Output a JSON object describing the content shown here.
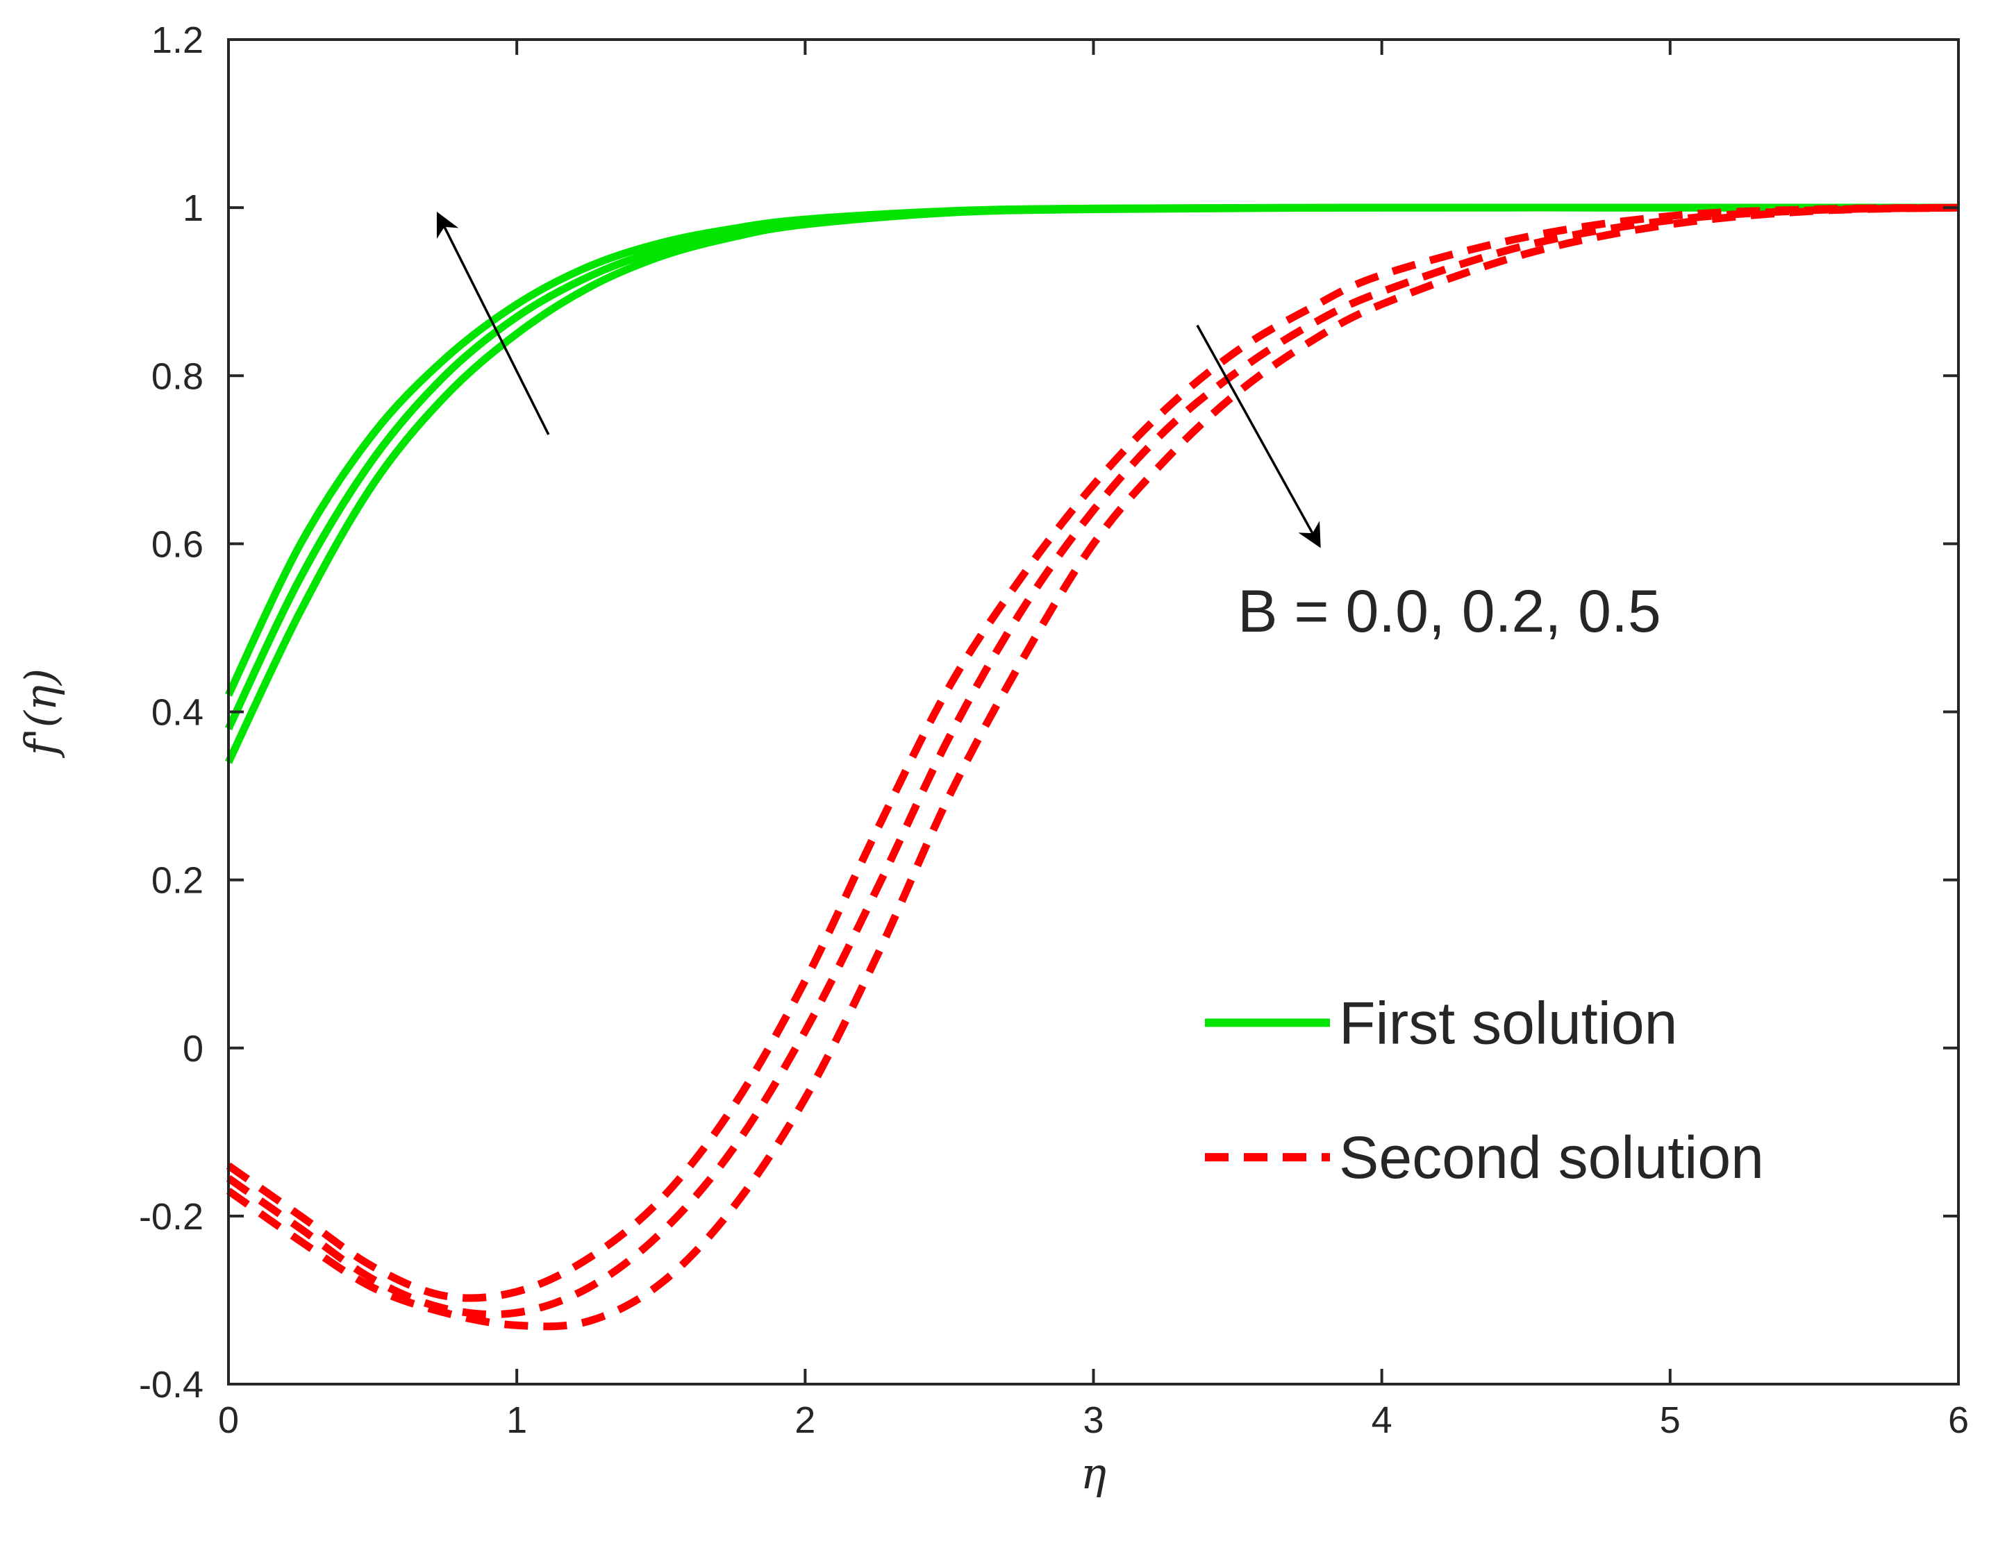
{
  "chart_data": {
    "type": "line",
    "xlabel": "η",
    "ylabel": "f'(η)",
    "xlim": [
      0,
      6
    ],
    "ylim": [
      -0.4,
      1.2
    ],
    "xticks": [
      "0",
      "1",
      "2",
      "3",
      "4",
      "5",
      "6"
    ],
    "yticks": [
      "-0.4",
      "-0.2",
      "0",
      "0.2",
      "0.4",
      "0.6",
      "0.8",
      "1",
      "1.2"
    ],
    "grid": false,
    "legend_position": "bottom-right",
    "annotation": "B = 0.0, 0.2, 0.5",
    "colors": {
      "first": "#00e400",
      "second": "#ff0000",
      "axis": "#262626",
      "arrow": "#000000"
    },
    "legend": [
      {
        "label": "First solution",
        "style": "solid",
        "color": "#00e400"
      },
      {
        "label": "Second solution",
        "style": "dashed",
        "color": "#ff0000"
      }
    ],
    "series": [
      {
        "group": "first",
        "style": "solid",
        "color": "#00e400",
        "x": [
          0,
          0.25,
          0.5,
          0.75,
          1.0,
          1.25,
          1.5,
          1.75,
          2.0,
          2.5,
          3.0,
          4.0,
          5.0,
          6.0
        ],
        "y": [
          0.42,
          0.6,
          0.73,
          0.82,
          0.885,
          0.93,
          0.958,
          0.975,
          0.986,
          0.996,
          0.999,
          1.0,
          1.0,
          1.0
        ]
      },
      {
        "group": "first",
        "style": "solid",
        "color": "#00e400",
        "x": [
          0,
          0.25,
          0.5,
          0.75,
          1.0,
          1.25,
          1.5,
          1.75,
          2.0,
          2.5,
          3.0,
          4.0,
          5.0,
          6.0
        ],
        "y": [
          0.38,
          0.56,
          0.7,
          0.8,
          0.87,
          0.918,
          0.95,
          0.97,
          0.983,
          0.995,
          0.999,
          1.0,
          1.0,
          1.0
        ]
      },
      {
        "group": "first",
        "style": "solid",
        "color": "#00e400",
        "x": [
          0,
          0.25,
          0.5,
          0.75,
          1.0,
          1.25,
          1.5,
          1.75,
          2.0,
          2.5,
          3.0,
          4.0,
          5.0,
          6.0
        ],
        "y": [
          0.34,
          0.52,
          0.67,
          0.775,
          0.85,
          0.905,
          0.942,
          0.965,
          0.98,
          0.994,
          0.998,
          1.0,
          1.0,
          1.0
        ]
      },
      {
        "group": "second",
        "style": "dashed",
        "color": "#ff0000",
        "x": [
          0,
          0.25,
          0.5,
          0.75,
          1.0,
          1.25,
          1.5,
          1.75,
          2.0,
          2.25,
          2.5,
          2.75,
          3.0,
          3.25,
          3.5,
          3.75,
          4.0,
          4.5,
          5.0,
          5.5,
          6.0
        ],
        "y": [
          -0.14,
          -0.2,
          -0.26,
          -0.295,
          -0.29,
          -0.25,
          -0.18,
          -0.07,
          0.08,
          0.26,
          0.43,
          0.56,
          0.67,
          0.76,
          0.83,
          0.88,
          0.92,
          0.965,
          0.99,
          0.998,
          1.0
        ]
      },
      {
        "group": "second",
        "style": "dashed",
        "color": "#ff0000",
        "x": [
          0,
          0.25,
          0.5,
          0.75,
          1.0,
          1.25,
          1.5,
          1.75,
          2.0,
          2.25,
          2.5,
          2.75,
          3.0,
          3.25,
          3.5,
          3.75,
          4.0,
          4.5,
          5.0,
          5.5,
          6.0
        ],
        "y": [
          -0.155,
          -0.215,
          -0.275,
          -0.31,
          -0.315,
          -0.285,
          -0.22,
          -0.12,
          0.02,
          0.19,
          0.37,
          0.52,
          0.64,
          0.735,
          0.805,
          0.86,
          0.9,
          0.955,
          0.985,
          0.997,
          1.0
        ]
      },
      {
        "group": "second",
        "style": "dashed",
        "color": "#ff0000",
        "x": [
          0,
          0.25,
          0.5,
          0.75,
          1.0,
          1.25,
          1.5,
          1.75,
          2.0,
          2.25,
          2.5,
          2.75,
          3.0,
          3.25,
          3.5,
          3.75,
          4.0,
          4.5,
          5.0,
          5.5,
          6.0
        ],
        "y": [
          -0.17,
          -0.23,
          -0.285,
          -0.315,
          -0.33,
          -0.325,
          -0.28,
          -0.19,
          -0.06,
          0.11,
          0.3,
          0.46,
          0.6,
          0.7,
          0.78,
          0.84,
          0.885,
          0.945,
          0.98,
          0.996,
          1.0
        ]
      }
    ],
    "arrows": [
      {
        "from": [
          1.11,
          0.73
        ],
        "to": [
          0.73,
          0.99
        ]
      },
      {
        "from": [
          3.36,
          0.86
        ],
        "to": [
          3.78,
          0.6
        ]
      }
    ],
    "annotation_anchor": [
      3.5,
      0.52
    ]
  }
}
